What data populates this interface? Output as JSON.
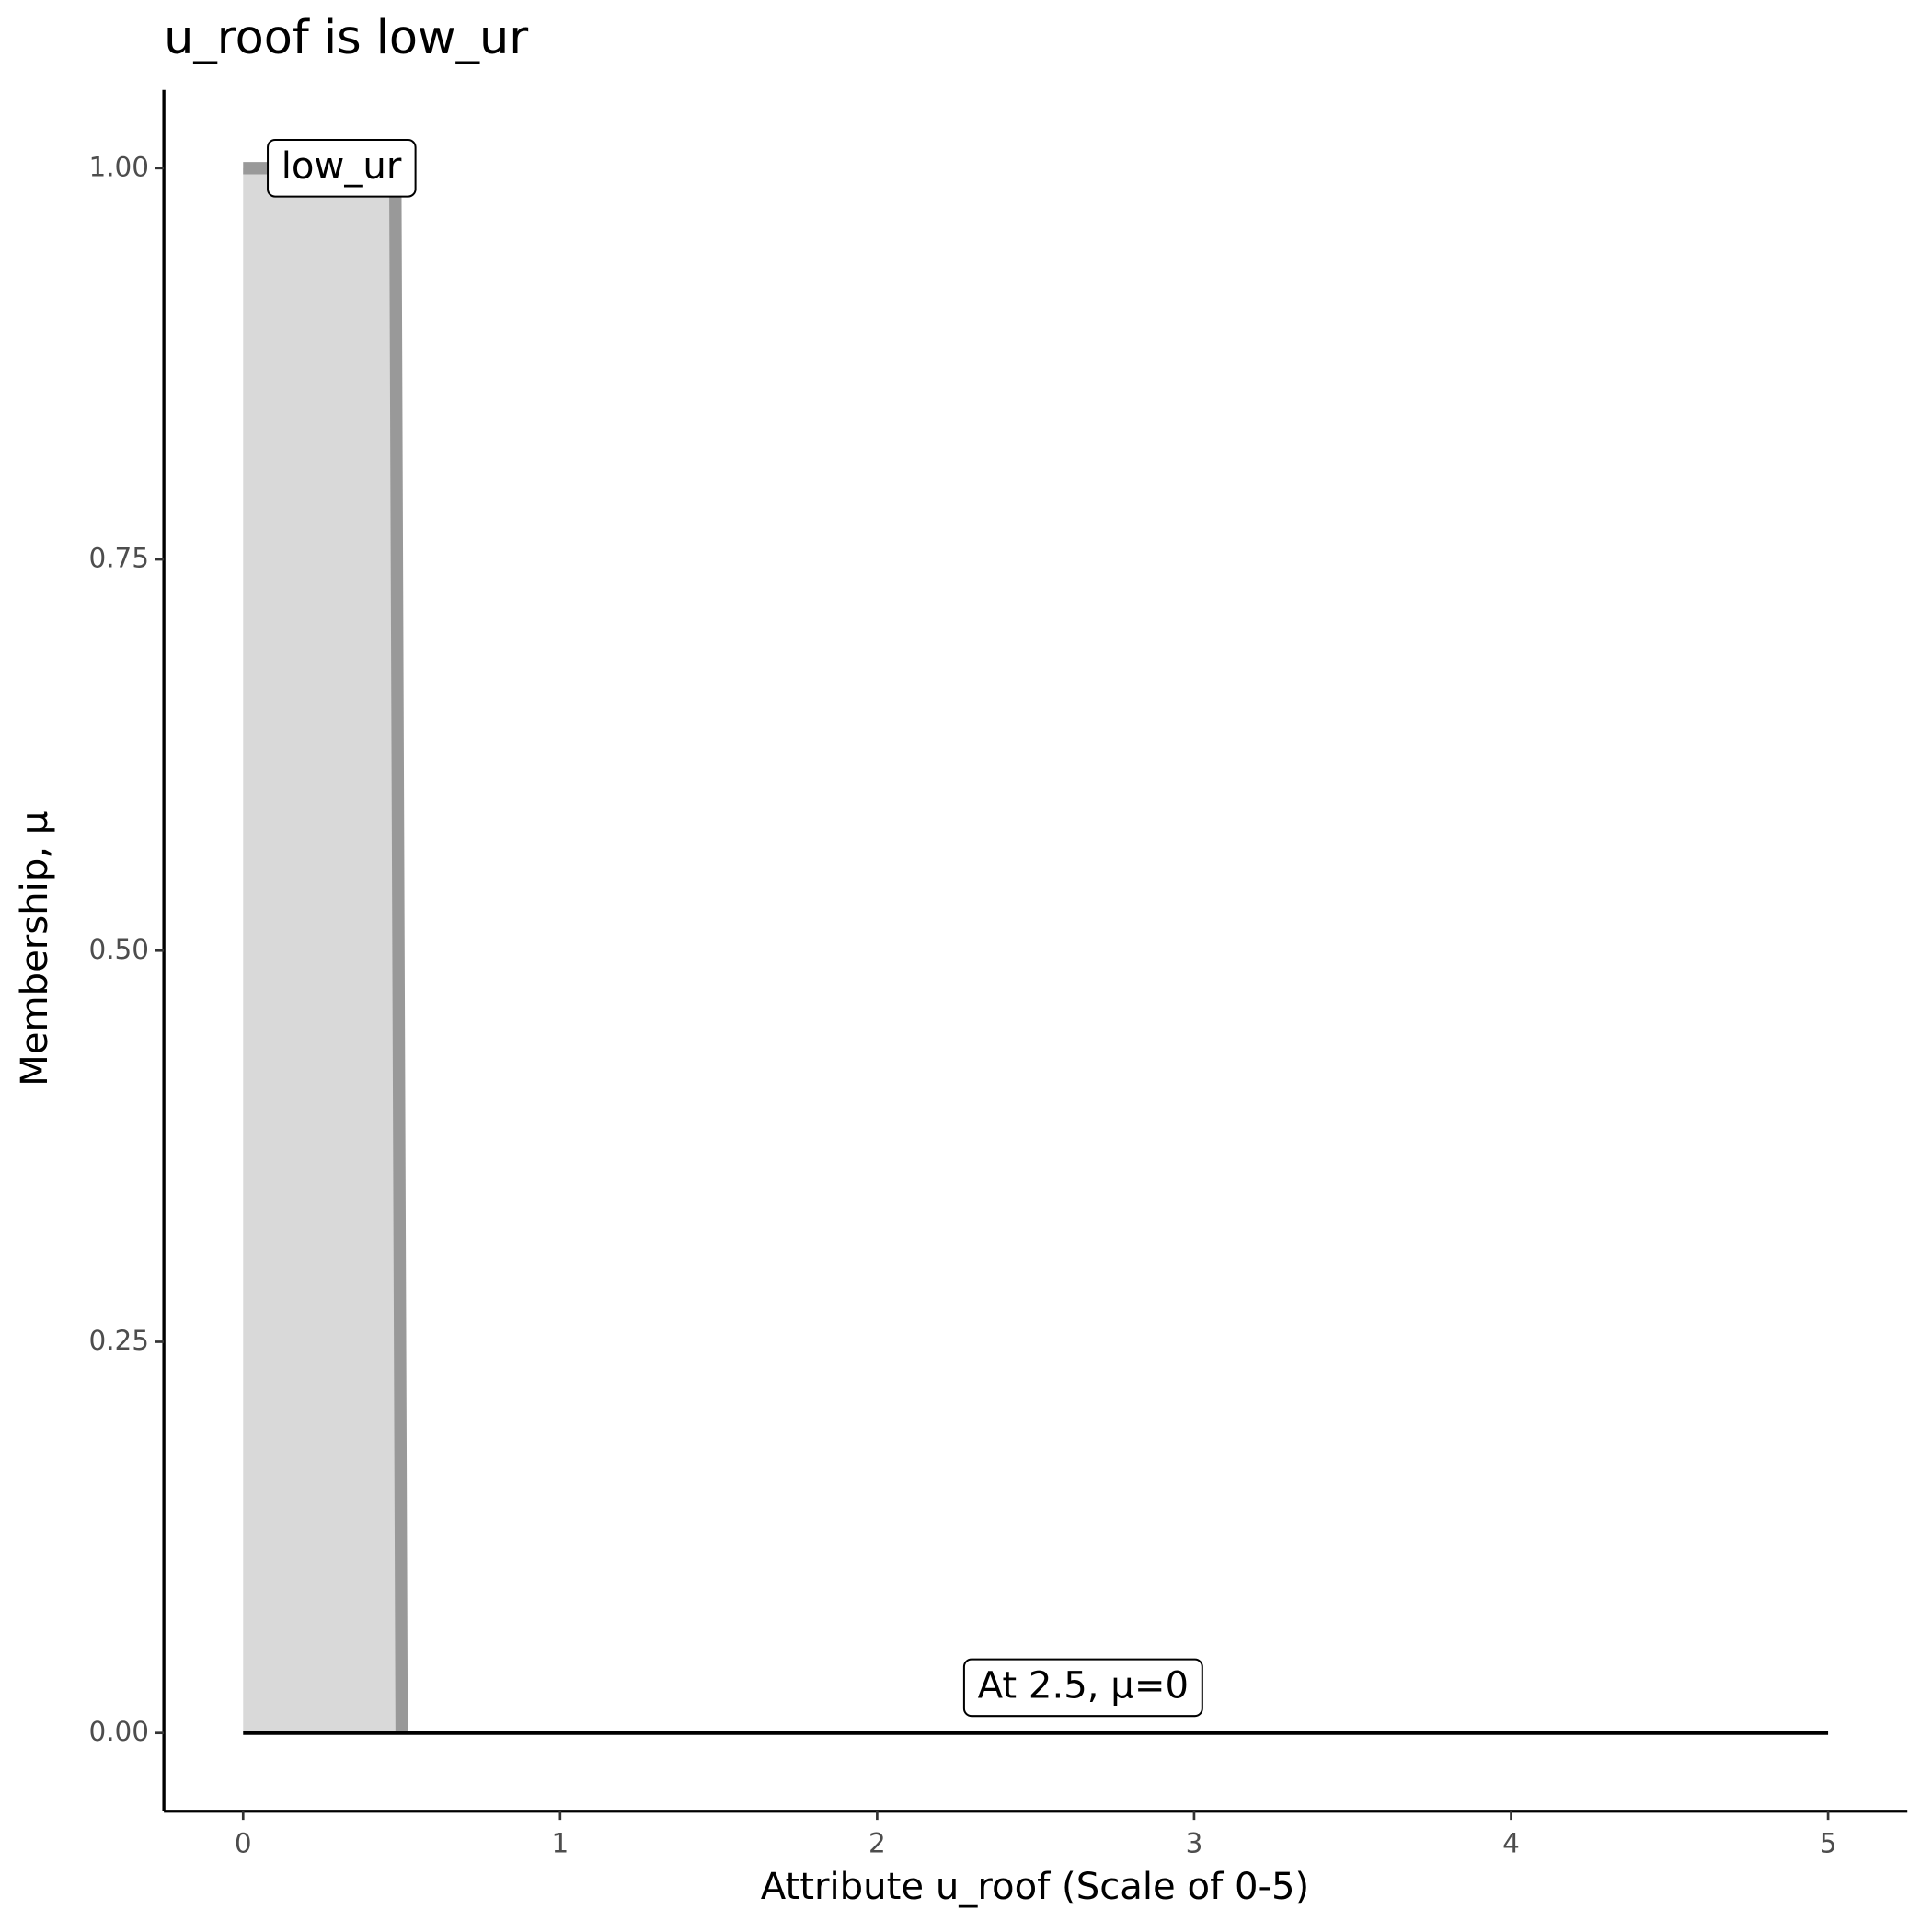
{
  "chart_data": {
    "type": "line",
    "title": "u_roof is low_ur",
    "x_label": "Attribute u_roof (Scale of 0-5)",
    "y_label": "Membership, μ",
    "series": [
      {
        "name": "low_ur",
        "color": "#999999",
        "fill": "#d9d9d9",
        "x": [
          0,
          0.48,
          0.5
        ],
        "values": [
          1,
          1,
          0
        ]
      },
      {
        "name": "At 2.5, μ=0",
        "color": "#000000",
        "x": [
          0,
          5
        ],
        "values": [
          0,
          0
        ]
      }
    ],
    "xlim": [
      -0.25,
      5.25
    ],
    "ylim": [
      -0.05,
      1.05
    ],
    "xticks": [
      0,
      1,
      2,
      3,
      4,
      5
    ],
    "yticks": [
      {
        "value": 0,
        "label": "0.00"
      },
      {
        "value": 0.25,
        "label": "0.25"
      },
      {
        "value": 0.5,
        "label": "0.50"
      },
      {
        "value": 0.75,
        "label": "0.75"
      },
      {
        "value": 1,
        "label": "1.00"
      }
    ]
  }
}
